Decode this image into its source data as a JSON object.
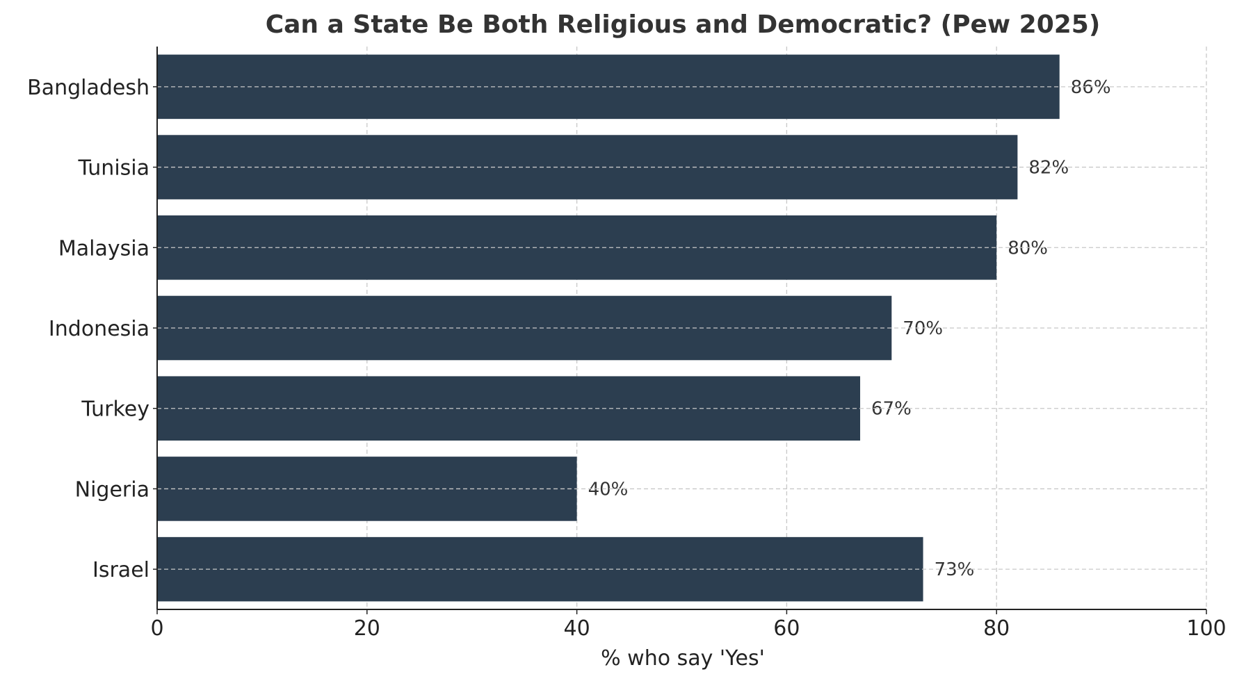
{
  "chart_data": {
    "type": "bar",
    "orientation": "horizontal",
    "title": "Can a State Be Both Religious and Democratic? (Pew 2025)",
    "xlabel": "% who say 'Yes'",
    "ylabel": "",
    "xlim": [
      0,
      100
    ],
    "xticks": [
      0,
      20,
      40,
      60,
      80,
      100
    ],
    "grid": true,
    "bar_color": "#2c3e50",
    "categories": [
      "Bangladesh",
      "Tunisia",
      "Malaysia",
      "Indonesia",
      "Turkey",
      "Nigeria",
      "Israel"
    ],
    "values": [
      86,
      82,
      80,
      70,
      67,
      40,
      73
    ],
    "value_labels": [
      "86%",
      "82%",
      "80%",
      "70%",
      "67%",
      "40%",
      "73%"
    ]
  }
}
